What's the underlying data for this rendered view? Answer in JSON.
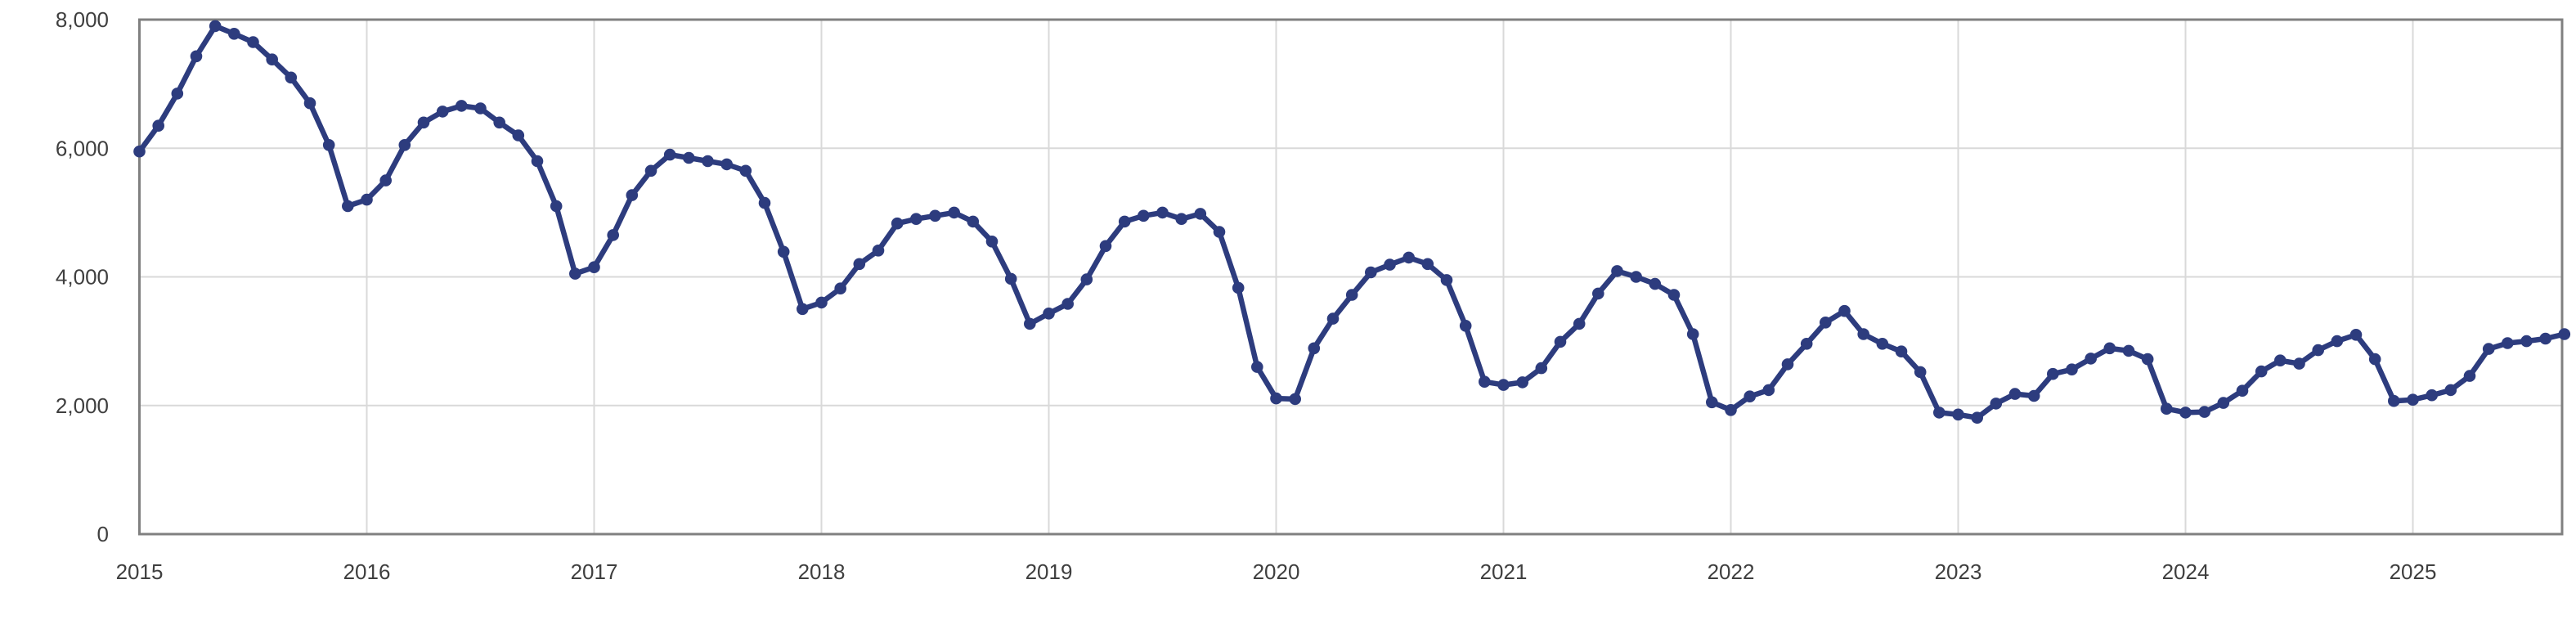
{
  "chart_data": {
    "type": "line",
    "x_axis": {
      "tick_labels": [
        "2015",
        "2016",
        "2017",
        "2018",
        "2019",
        "2020",
        "2021",
        "2022",
        "2023",
        "2024",
        "2025"
      ],
      "start": "2015-01",
      "frequency": "monthly",
      "gridlines": true
    },
    "y_axis": {
      "tick_labels": [
        "0",
        "2,000",
        "4,000",
        "6,000",
        "8,000"
      ],
      "min": 0,
      "max": 8000,
      "gridline_interval": 2000,
      "gridlines": true
    },
    "legend": {
      "visible": false
    },
    "series": [
      {
        "name": "monthly-values",
        "color": "#2d3c7e",
        "marker": "circle",
        "values": [
          5950,
          6350,
          6850,
          7430,
          7900,
          7780,
          7650,
          7380,
          7100,
          6700,
          6050,
          5100,
          5200,
          5500,
          6050,
          6400,
          6570,
          6660,
          6620,
          6400,
          6200,
          5800,
          5100,
          4050,
          4150,
          4650,
          5270,
          5650,
          5900,
          5850,
          5800,
          5750,
          5650,
          5150,
          4390,
          3500,
          3600,
          3820,
          4200,
          4410,
          4830,
          4900,
          4950,
          5000,
          4860,
          4550,
          3970,
          3270,
          3430,
          3580,
          3960,
          4480,
          4860,
          4950,
          5000,
          4900,
          4980,
          4700,
          3830,
          2600,
          2110,
          2100,
          2890,
          3350,
          3720,
          4070,
          4190,
          4300,
          4200,
          3950,
          3240,
          2370,
          2320,
          2360,
          2580,
          2990,
          3270,
          3740,
          4090,
          4000,
          3890,
          3720,
          3110,
          2050,
          1930,
          2140,
          2240,
          2640,
          2960,
          3290,
          3470,
          3110,
          2960,
          2840,
          2520,
          1890,
          1860,
          1810,
          2030,
          2180,
          2150,
          2490,
          2560,
          2730,
          2890,
          2850,
          2720,
          1950,
          1890,
          1900,
          2040,
          2230,
          2530,
          2700,
          2650,
          2860,
          3000,
          3100,
          2720,
          2070,
          2090,
          2160,
          2240,
          2460,
          2880,
          2970,
          3000,
          3040,
          3110
        ]
      }
    ],
    "style": {
      "background": "#ffffff",
      "plot_border_color": "#808080",
      "gridline_color": "#d9d9d9",
      "label_color": "#3f3f3f"
    }
  }
}
